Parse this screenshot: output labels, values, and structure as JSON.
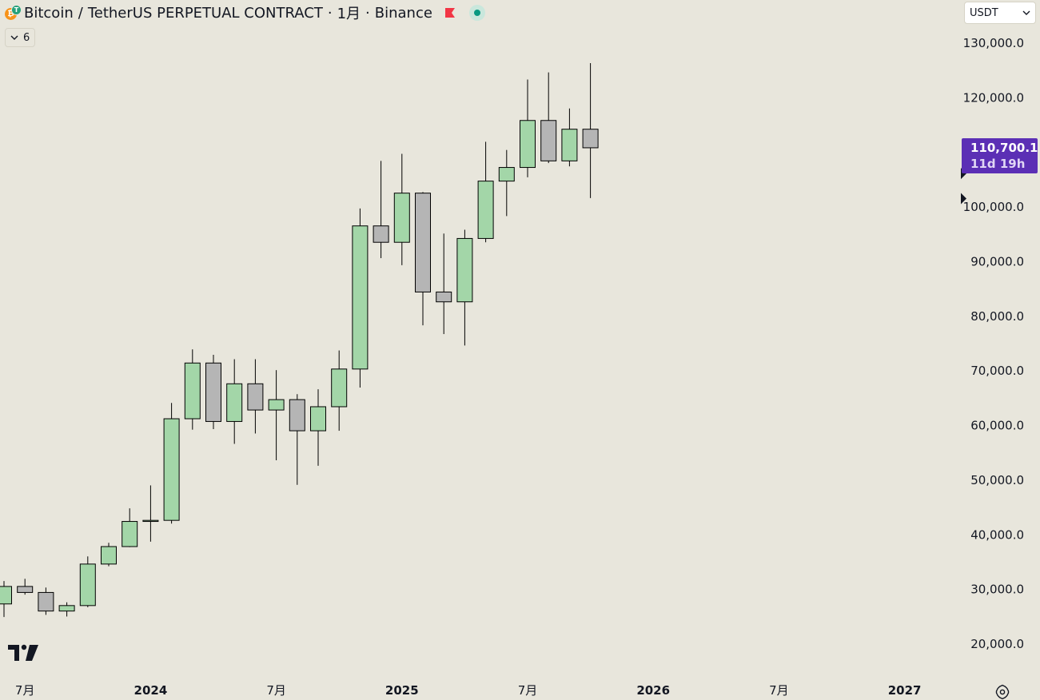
{
  "header": {
    "base": "Bitcoin",
    "separator": "/",
    "quote_title": "TetherUS PERPETUAL CONTRACT",
    "interval": "1月",
    "exchange": "Binance",
    "dot": "·",
    "flag_color": "#f23645",
    "status_color": "#089981",
    "coin_icons": [
      "bitcoin-icon",
      "tether-icon"
    ]
  },
  "indicators": {
    "count": "6",
    "icon": "chevron-down-icon"
  },
  "currency": {
    "value": "USDT",
    "icon": "chevron-down-icon"
  },
  "price_label": {
    "price": "110,700.1",
    "countdown": "11d 19h",
    "color": "#5b2fb5"
  },
  "colors": {
    "up": "#a3d6a8",
    "down": "#b5b5b5",
    "outline": "#000000",
    "background": "#e8e6dc"
  },
  "chart_data": {
    "type": "candlestick",
    "symbol": "BTCUSDT",
    "interval": "1M",
    "ylim": [
      14000,
      137000
    ],
    "y_ticks": [
      20000,
      30000,
      40000,
      50000,
      60000,
      70000,
      80000,
      90000,
      100000,
      120000,
      130000
    ],
    "y_tick_labels": [
      "20,000.0",
      "30,000.0",
      "40,000.0",
      "50,000.0",
      "60,000.0",
      "70,000.0",
      "80,000.0",
      "90,000.0",
      "100,000.0",
      "120,000.0",
      "130,000.0"
    ],
    "x_labels": [
      "7月",
      "2024",
      "7月",
      "2025",
      "7月",
      "2026",
      "7月",
      "2027"
    ],
    "x_label_months": [
      "2023-07",
      "2024-01",
      "2024-07",
      "2025-01",
      "2025-07",
      "2026-01",
      "2026-07",
      "2027-01"
    ],
    "candles": [
      {
        "month": "2023-06",
        "open": 27200,
        "high": 31400,
        "low": 24800,
        "close": 30400
      },
      {
        "month": "2023-07",
        "open": 30400,
        "high": 31800,
        "low": 28900,
        "close": 29300
      },
      {
        "month": "2023-08",
        "open": 29300,
        "high": 30200,
        "low": 25200,
        "close": 25900
      },
      {
        "month": "2023-09",
        "open": 25900,
        "high": 27500,
        "low": 24900,
        "close": 26900
      },
      {
        "month": "2023-10",
        "open": 26900,
        "high": 35900,
        "low": 26600,
        "close": 34500
      },
      {
        "month": "2023-11",
        "open": 34500,
        "high": 38400,
        "low": 34100,
        "close": 37700
      },
      {
        "month": "2023-12",
        "open": 37700,
        "high": 44700,
        "low": 37600,
        "close": 42300
      },
      {
        "month": "2024-01",
        "open": 42300,
        "high": 48900,
        "low": 38600,
        "close": 42500
      },
      {
        "month": "2024-02",
        "open": 42500,
        "high": 64000,
        "low": 41900,
        "close": 61100
      },
      {
        "month": "2024-03",
        "open": 61100,
        "high": 73800,
        "low": 59100,
        "close": 71300
      },
      {
        "month": "2024-04",
        "open": 71300,
        "high": 72800,
        "low": 59200,
        "close": 60600
      },
      {
        "month": "2024-05",
        "open": 60600,
        "high": 72000,
        "low": 56500,
        "close": 67500
      },
      {
        "month": "2024-06",
        "open": 67500,
        "high": 72000,
        "low": 58400,
        "close": 62700
      },
      {
        "month": "2024-07",
        "open": 62700,
        "high": 70000,
        "low": 53500,
        "close": 64600
      },
      {
        "month": "2024-08",
        "open": 64600,
        "high": 65600,
        "low": 49000,
        "close": 58900
      },
      {
        "month": "2024-09",
        "open": 58900,
        "high": 66500,
        "low": 52500,
        "close": 63300
      },
      {
        "month": "2024-10",
        "open": 63300,
        "high": 73600,
        "low": 58900,
        "close": 70200
      },
      {
        "month": "2024-11",
        "open": 70200,
        "high": 99600,
        "low": 66800,
        "close": 96400
      },
      {
        "month": "2024-12",
        "open": 96400,
        "high": 108300,
        "low": 90500,
        "close": 93400
      },
      {
        "month": "2025-01",
        "open": 93400,
        "high": 109600,
        "low": 89200,
        "close": 102400
      },
      {
        "month": "2025-02",
        "open": 102400,
        "high": 102600,
        "low": 78200,
        "close": 84300
      },
      {
        "month": "2025-03",
        "open": 84300,
        "high": 95000,
        "low": 76600,
        "close": 82500
      },
      {
        "month": "2025-04",
        "open": 82500,
        "high": 95700,
        "low": 74500,
        "close": 94100
      },
      {
        "month": "2025-05",
        "open": 94100,
        "high": 111800,
        "low": 93400,
        "close": 104600
      },
      {
        "month": "2025-06",
        "open": 104600,
        "high": 110300,
        "low": 98200,
        "close": 107100
      },
      {
        "month": "2025-07",
        "open": 107100,
        "high": 123200,
        "low": 105300,
        "close": 115700
      },
      {
        "month": "2025-08",
        "open": 115700,
        "high": 124500,
        "low": 107900,
        "close": 108300
      },
      {
        "month": "2025-09",
        "open": 108300,
        "high": 117900,
        "low": 107300,
        "close": 114100
      },
      {
        "month": "2025-10",
        "open": 114100,
        "high": 126200,
        "low": 101500,
        "close": 110700.1
      }
    ],
    "last_price": 110700.1,
    "markers": [
      {
        "type": "arrow-right",
        "price": 106000
      },
      {
        "type": "arrow-right",
        "price": 101400
      }
    ]
  }
}
